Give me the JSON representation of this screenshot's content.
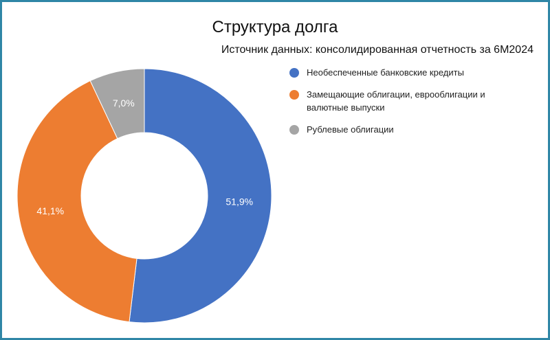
{
  "chart_data": {
    "type": "pie",
    "title": "Структура долга",
    "subtitle": "Источник данных: консолидированная отчетность за 6М2024",
    "categories": [
      "Необеспеченные банковские кредиты",
      "Замещающие облигации, еврооблигации и валютные выпуски",
      "Рублевые облигации"
    ],
    "values": [
      51.9,
      41.1,
      7.0
    ],
    "value_labels": [
      "51,9%",
      "41,1%",
      "7,0%"
    ],
    "colors": [
      "#4472c4",
      "#ed7d31",
      "#a5a5a5"
    ],
    "donut": true,
    "legend_position": "right"
  }
}
